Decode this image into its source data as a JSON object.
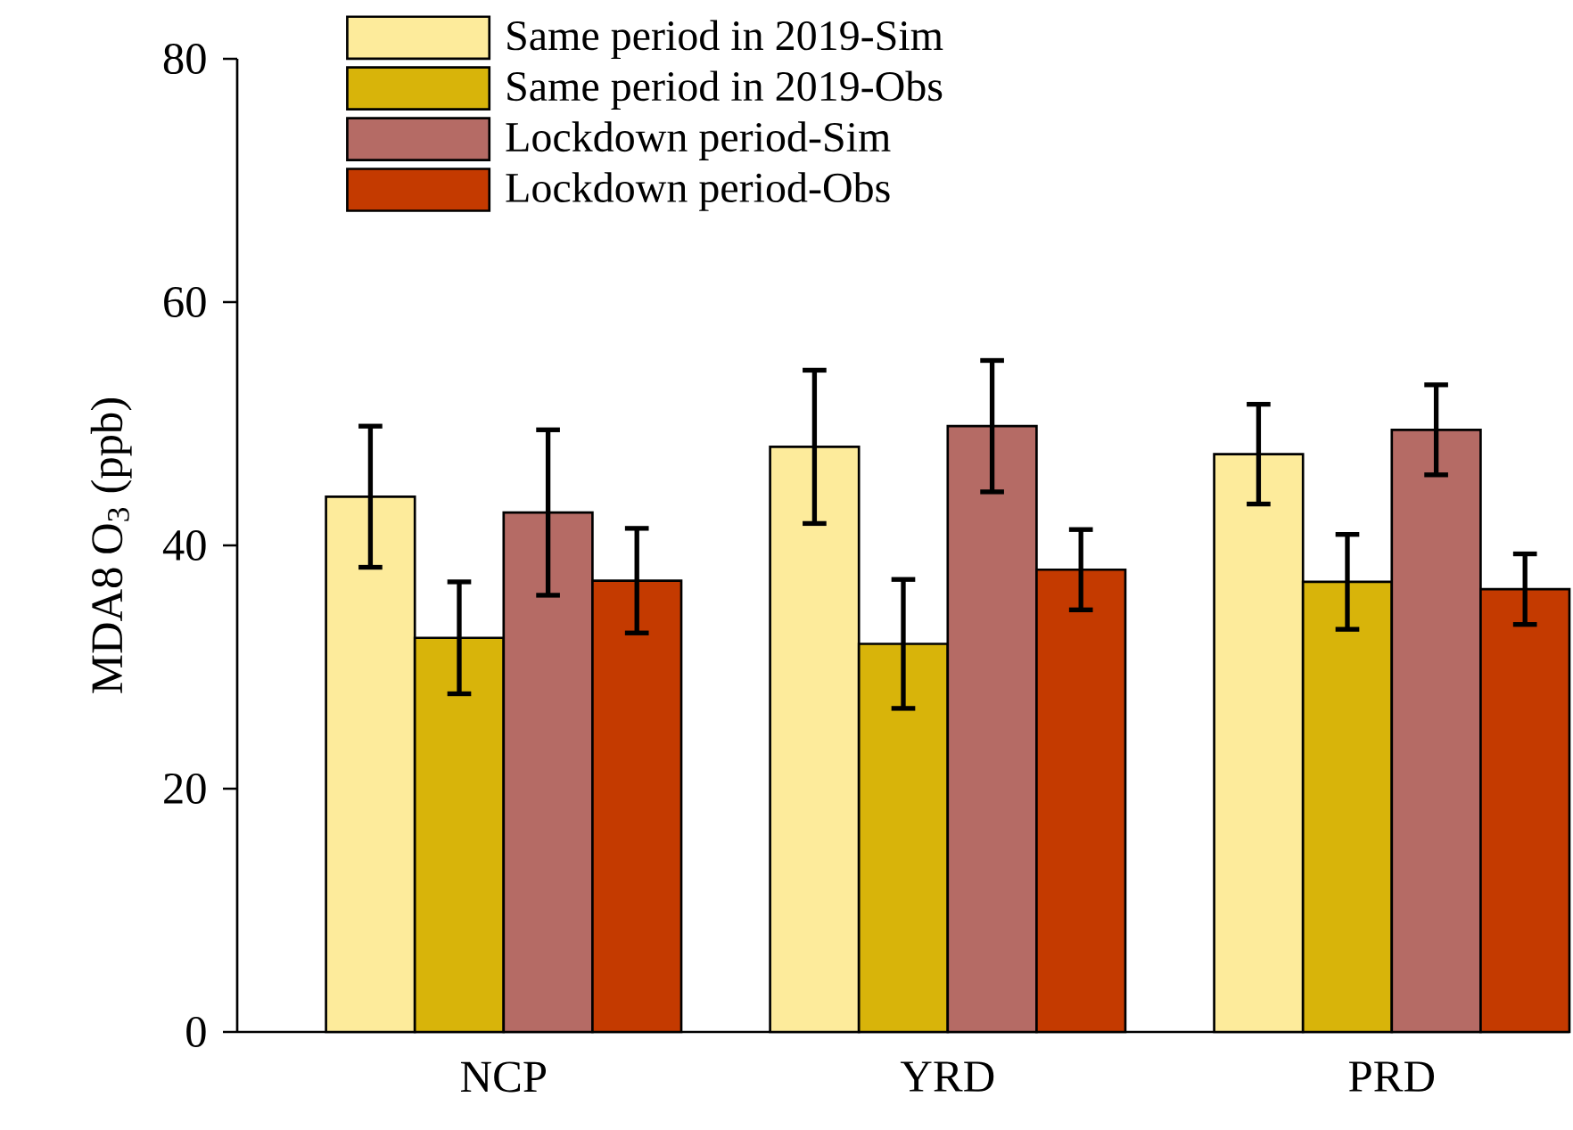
{
  "chart_data": {
    "type": "bar",
    "ylabel": "MDA8 O$_{3}$ (ppb)",
    "categories": [
      "NCP",
      "YRD",
      "PRD"
    ],
    "series": [
      {
        "name": "Same period in 2019-Sim",
        "color": "#fdeb9b",
        "values": [
          44.0,
          48.1,
          47.5
        ],
        "errors": [
          5.8,
          6.3,
          4.1
        ]
      },
      {
        "name": "Same period in 2019-Obs",
        "color": "#d8b40a",
        "values": [
          32.4,
          31.9,
          37.0
        ],
        "errors": [
          4.6,
          5.3,
          3.9
        ]
      },
      {
        "name": "Lockdown period-Sim",
        "color": "#b56b65",
        "values": [
          42.7,
          49.8,
          49.5
        ],
        "errors": [
          6.8,
          5.4,
          3.7
        ]
      },
      {
        "name": "Lockdown period-Obs",
        "color": "#c43a00",
        "values": [
          37.1,
          38.0,
          36.4
        ],
        "errors": [
          4.3,
          3.3,
          2.9
        ]
      }
    ],
    "ylim": [
      0,
      80
    ],
    "yticks": [
      0,
      20,
      40,
      60,
      80
    ],
    "legend": "top",
    "grid": false
  }
}
